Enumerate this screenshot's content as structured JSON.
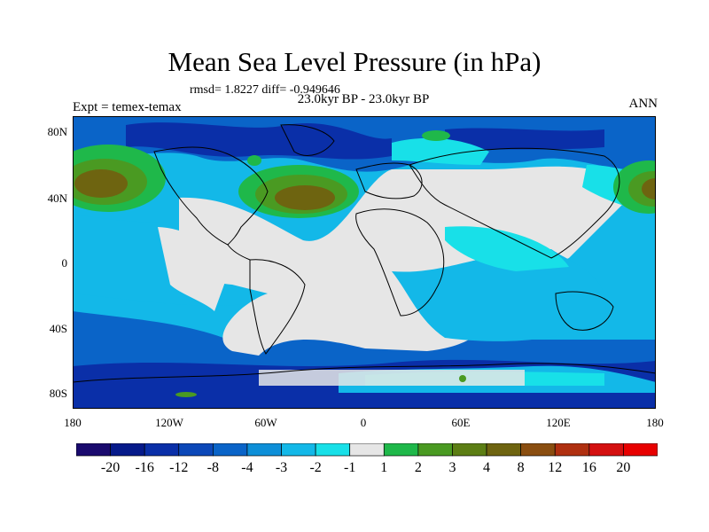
{
  "title": "Mean Sea Level Pressure (in hPa)",
  "stats_text": "rmsd= 1.8227 diff= -0.949646",
  "period_text": "23.0kyr BP - 23.0kyr BP",
  "experiment_text": "Expt = temex-temax",
  "season_text": "ANN",
  "lat_labels": [
    "80N",
    "40N",
    "0",
    "40S",
    "80S"
  ],
  "lon_labels": [
    "180",
    "120W",
    "60W",
    "0",
    "60E",
    "120E",
    "180"
  ],
  "colorbar": {
    "labels": [
      "-20",
      "-16",
      "-12",
      "-8",
      "-4",
      "-3",
      "-2",
      "-1",
      "1",
      "2",
      "3",
      "4",
      "8",
      "12",
      "16",
      "20"
    ],
    "colors": [
      "#1a0a6e",
      "#061a8a",
      "#0a2fa8",
      "#0c48b8",
      "#0a64c8",
      "#0d8fd8",
      "#13b8e8",
      "#18e0e8",
      "#e6e6e6",
      "#1fb84a",
      "#4a9a22",
      "#5c7e14",
      "#6e6410",
      "#8a4e10",
      "#b03010",
      "#d41010",
      "#e80000"
    ]
  },
  "colors": {
    "ocean_base": "#13b8e8",
    "neutral": "#e6e6e6",
    "deep_blue": "#0a2fa8",
    "mid_blue": "#0a64c8",
    "light_blue": "#18e0e8",
    "green": "#1fb84a",
    "dark_green": "#4a9a22",
    "brown": "#6e6410"
  }
}
